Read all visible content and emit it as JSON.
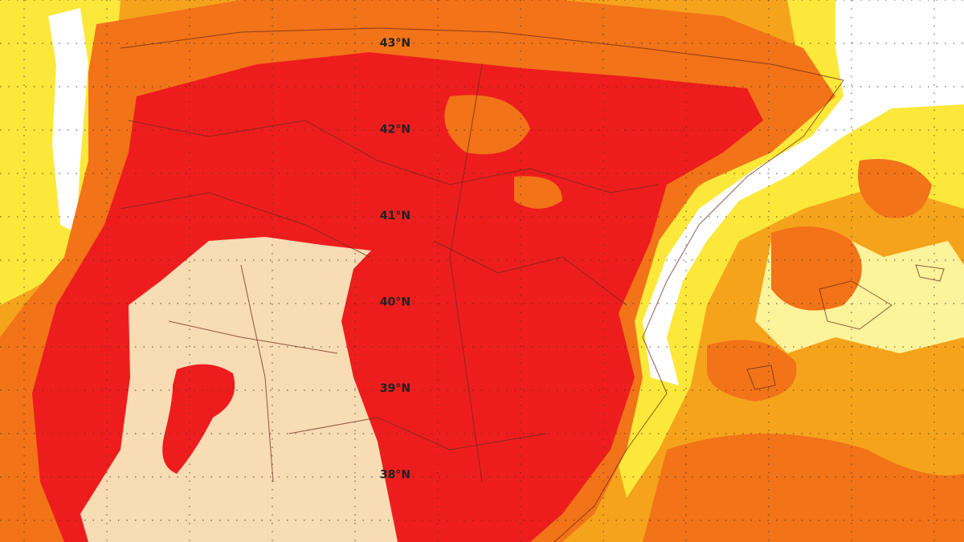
{
  "map": {
    "latitude_labels": [
      "43°N",
      "42°N",
      "41°N",
      "40°N",
      "39°N",
      "38°N"
    ]
  }
}
